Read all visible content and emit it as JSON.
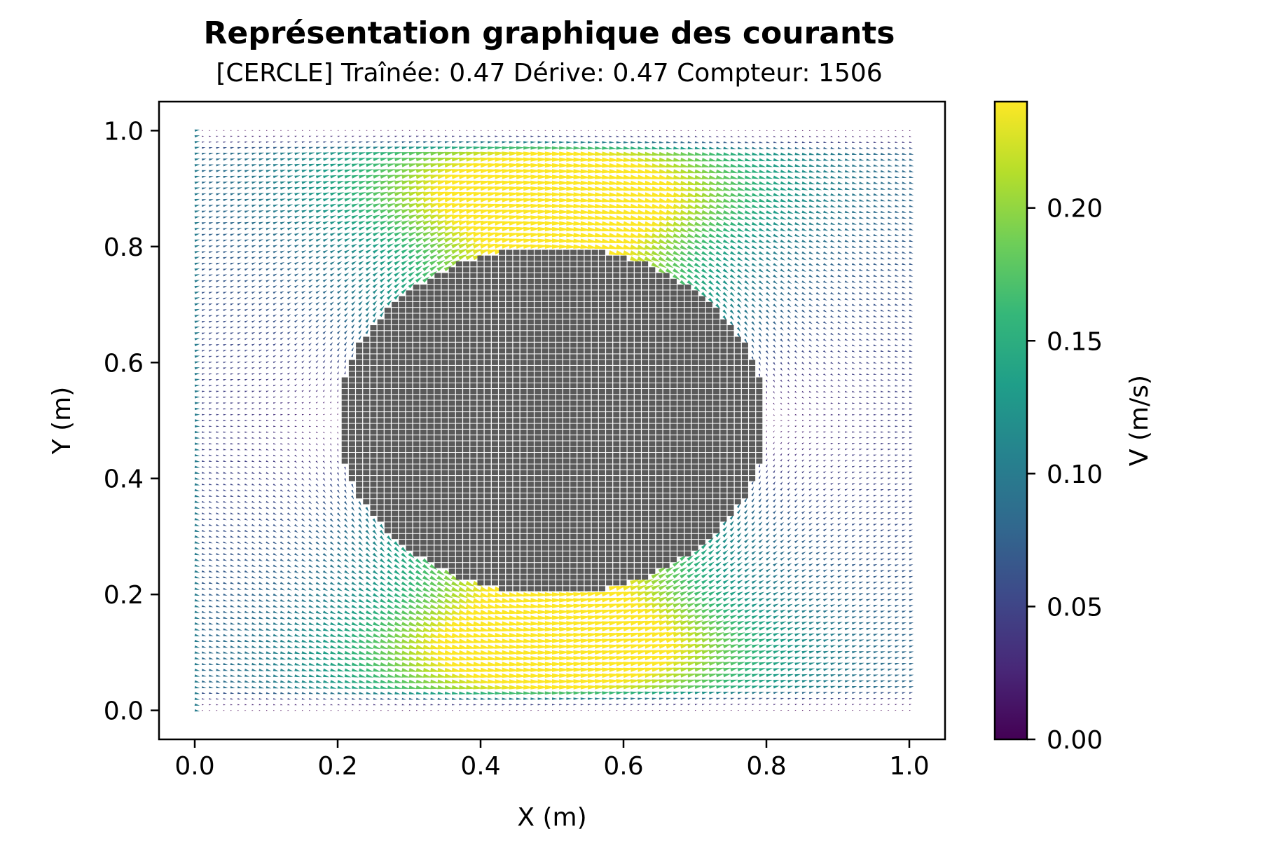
{
  "chart_data": {
    "type": "quiver",
    "title": "Représentation graphique des courants",
    "subtitle": "[CERCLE]   Traînée: 0.47 Dérive: 0.47 Compteur: 1506",
    "xlabel": "X (m)",
    "ylabel": "Y (m)",
    "xlim": [
      -0.05,
      1.05
    ],
    "ylim": [
      -0.05,
      1.05
    ],
    "xticks": [
      "0.0",
      "0.2",
      "0.4",
      "0.6",
      "0.8",
      "1.0"
    ],
    "yticks": [
      "0.0",
      "0.2",
      "0.4",
      "0.6",
      "0.8",
      "1.0"
    ],
    "grid": false,
    "obstacle": {
      "shape": "circle",
      "center": [
        0.5,
        0.5
      ],
      "radius": 0.3,
      "fill": "#5a5a5a"
    },
    "field": {
      "x_range": [
        0.0,
        1.0
      ],
      "y_range": [
        0.0,
        1.0
      ],
      "nx": 101,
      "ny": 101,
      "max_speed": 0.24,
      "peak_upper": [
        0.5,
        0.9
      ],
      "peak_lower": [
        0.5,
        0.1
      ]
    },
    "colorbar": {
      "label": "V (m/s)",
      "colormap": "viridis",
      "range": [
        0.0,
        0.24
      ],
      "ticks": [
        "0.00",
        "0.05",
        "0.10",
        "0.15",
        "0.20"
      ],
      "colors": [
        "#440154",
        "#482878",
        "#3e4989",
        "#31688e",
        "#26828e",
        "#1f9e89",
        "#35b779",
        "#6ece58",
        "#b5de2b",
        "#fde725"
      ]
    }
  }
}
